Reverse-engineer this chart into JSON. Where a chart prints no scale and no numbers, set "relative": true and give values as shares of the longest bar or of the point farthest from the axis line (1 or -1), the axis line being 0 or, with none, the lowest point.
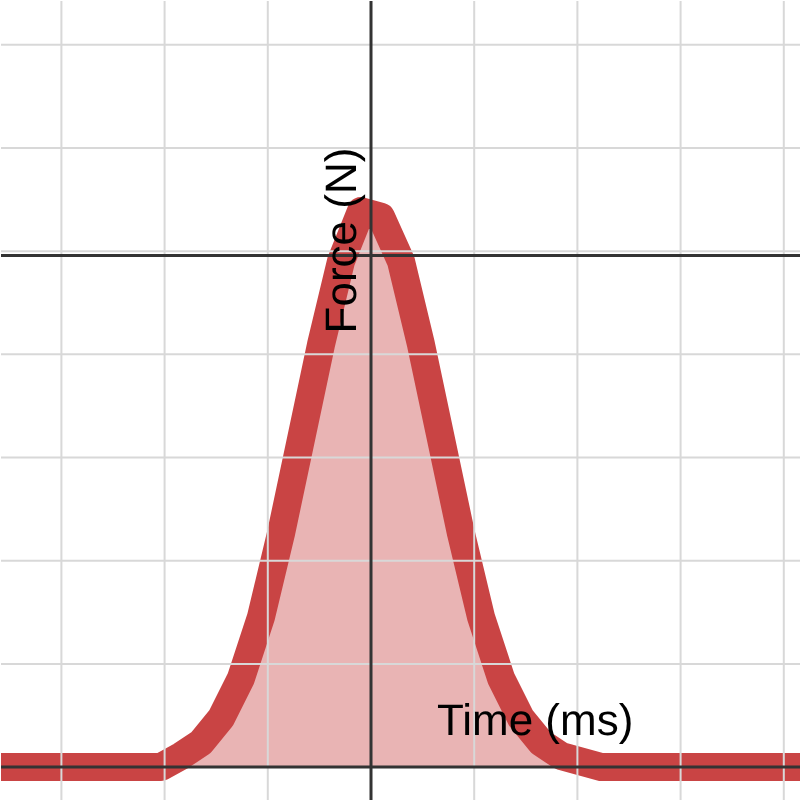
{
  "chart_data": {
    "type": "area",
    "relative": true,
    "xlabel": "Time (ms)",
    "ylabel": "Force (N)",
    "categories": [
      null,
      null,
      null,
      null,
      null,
      null,
      null,
      null,
      null,
      null,
      null,
      null,
      null,
      null,
      null,
      null,
      null,
      null,
      null,
      null,
      null,
      null,
      null,
      null,
      null,
      null,
      null,
      null,
      null,
      null,
      null,
      null,
      null,
      null,
      null,
      null,
      null,
      null,
      null,
      null,
      null
    ],
    "series": [
      {
        "color": "#c94444",
        "values": [
          0,
          0,
          0,
          0,
          0,
          0,
          0,
          0,
          0,
          0.02,
          0.044,
          0.088,
          0.16,
          0.27,
          0.42,
          0.59,
          0.76,
          0.91,
          1,
          0.99,
          0.91,
          0.76,
          0.59,
          0.42,
          0.27,
          0.16,
          0.088,
          0.044,
          0.02,
          0.01,
          0,
          0,
          0,
          0,
          0,
          0,
          0,
          0,
          0,
          0,
          0
        ]
      }
    ],
    "ref_lines": [
      {
        "axis": "y",
        "value": 0.92,
        "color": "#333333"
      }
    ],
    "grid": true
  }
}
